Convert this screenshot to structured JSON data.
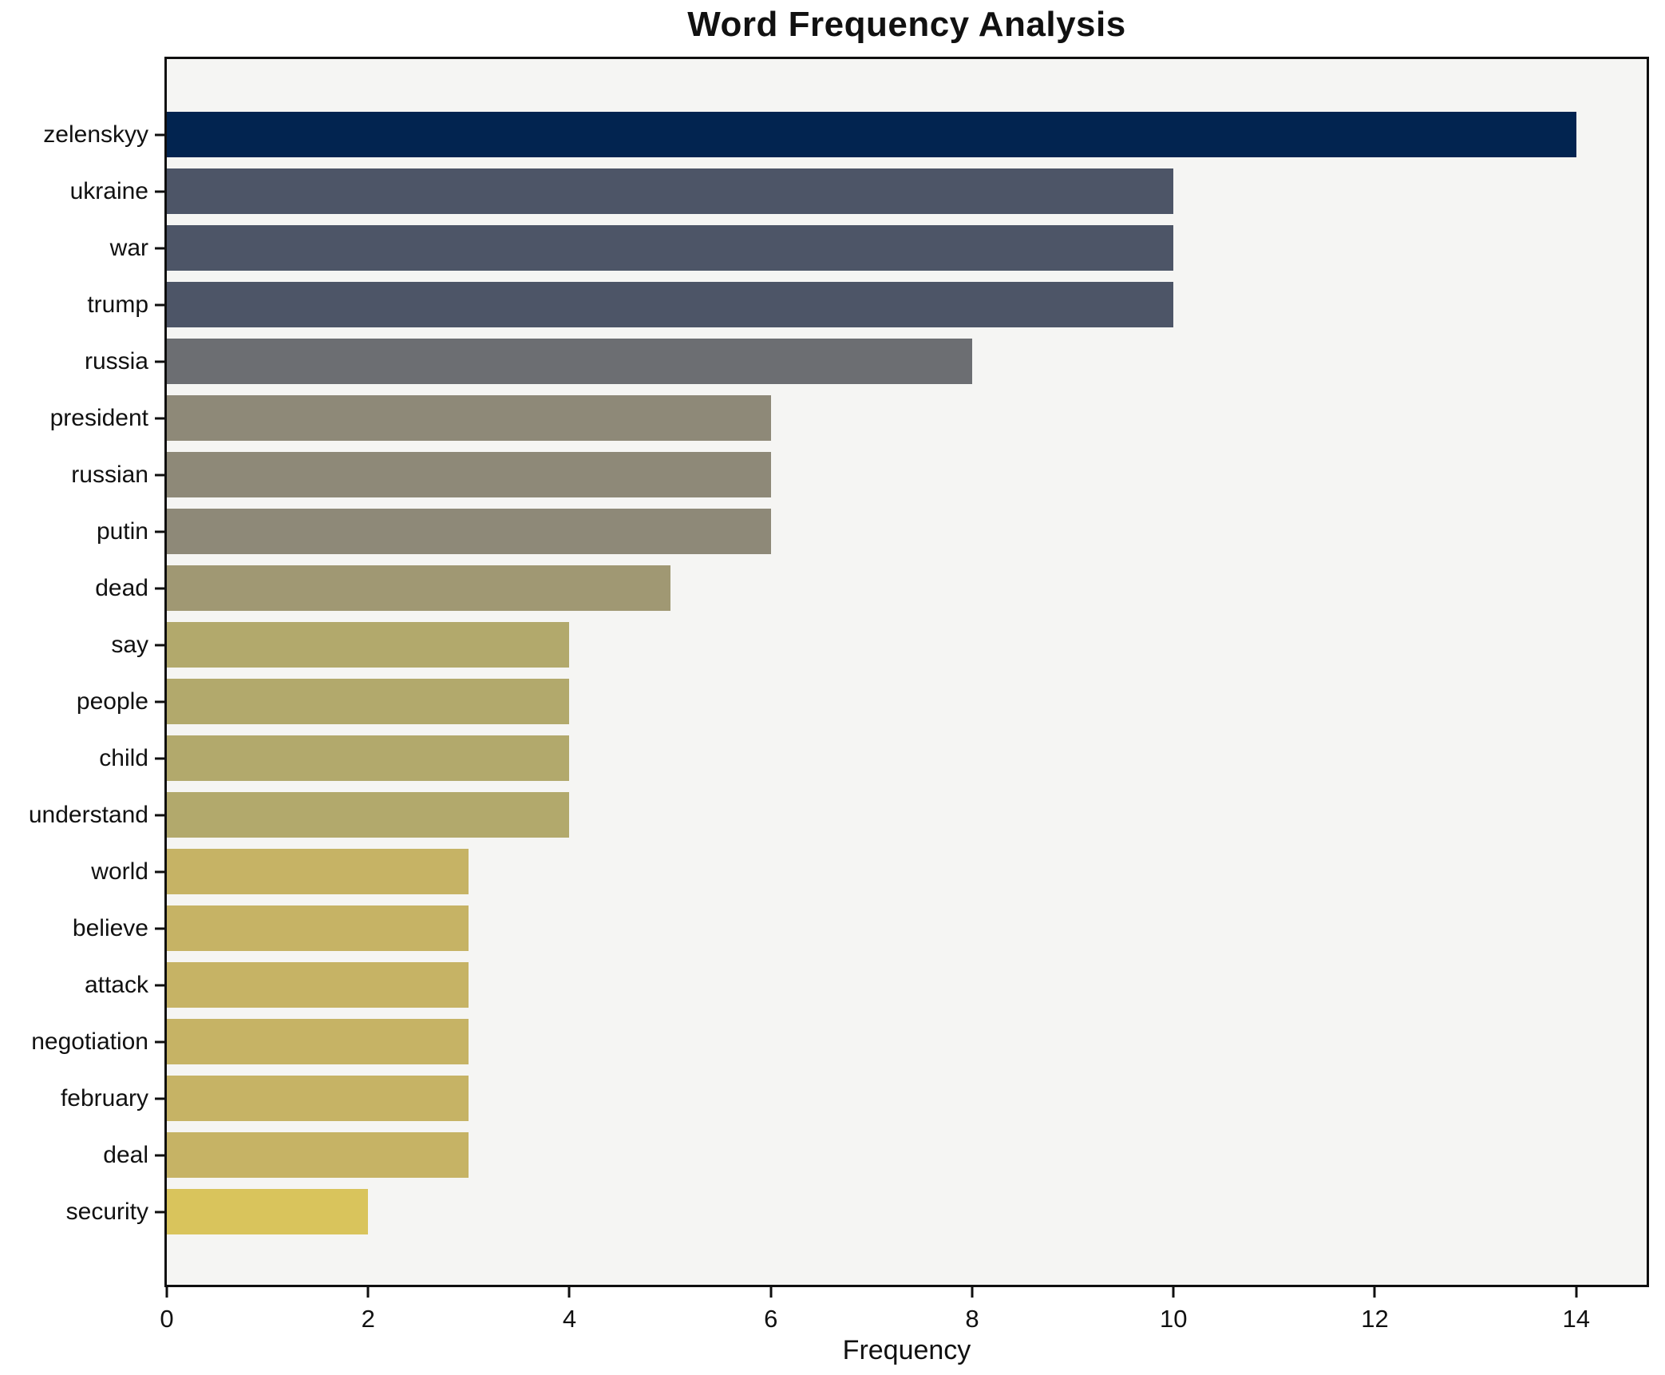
{
  "chart_data": {
    "type": "bar",
    "orientation": "horizontal",
    "title": "Word Frequency Analysis",
    "xlabel": "Frequency",
    "ylabel": "",
    "categories": [
      "zelenskyy",
      "ukraine",
      "war",
      "trump",
      "russia",
      "president",
      "russian",
      "putin",
      "dead",
      "say",
      "people",
      "child",
      "understand",
      "world",
      "believe",
      "attack",
      "negotiation",
      "february",
      "deal",
      "security"
    ],
    "values": [
      14,
      10,
      10,
      10,
      8,
      6,
      6,
      6,
      5,
      4,
      4,
      4,
      4,
      3,
      3,
      3,
      3,
      3,
      3,
      2
    ],
    "bar_colors": [
      "#022450",
      "#4d5567",
      "#4d5567",
      "#4d5567",
      "#6c6e72",
      "#8e8978",
      "#8e8978",
      "#8e8978",
      "#a09873",
      "#b2a96c",
      "#b2a96c",
      "#b2a96c",
      "#b2a96c",
      "#c6b365",
      "#c6b365",
      "#c6b365",
      "#c6b365",
      "#c6b365",
      "#c6b365",
      "#d9c45c"
    ],
    "xlim": [
      0,
      14.7
    ],
    "x_ticks": [
      0,
      2,
      4,
      6,
      8,
      10,
      12,
      14
    ],
    "grid": false,
    "legend": null,
    "plot_background": "#f5f5f3",
    "figure_background": "#ffffff",
    "spine_color": "#0f0f0f"
  }
}
